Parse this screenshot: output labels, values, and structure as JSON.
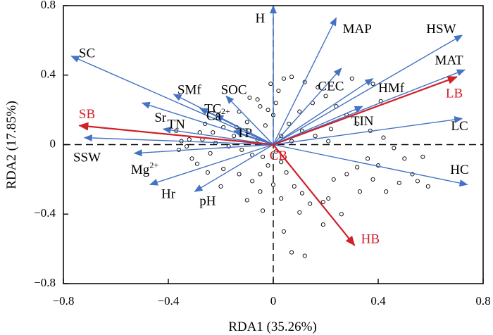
{
  "chart_data": {
    "type": "scatter",
    "xlabel": "RDA1  (35.26%)",
    "ylabel": "RDA2  (17.85%)",
    "xlim": [
      -0.8,
      0.8
    ],
    "ylim": [
      -0.8,
      0.8
    ],
    "x_ticks": [
      -0.8,
      -0.4,
      0,
      0.4,
      0.8
    ],
    "x_tick_labels": [
      "−0.8",
      "−0.4",
      "0",
      "0.4",
      "0.8"
    ],
    "y_ticks": [
      -0.8,
      -0.4,
      0,
      0.4,
      0.8
    ],
    "y_tick_labels": [
      "−0.8",
      "−0.4",
      "0",
      "0.4",
      "0.8"
    ],
    "colors": {
      "environment_arrow": "#4472c4",
      "species_arrow": "#d0202a",
      "axis": "#000000"
    },
    "environment_vectors": [
      {
        "name": "H",
        "x": 0.0,
        "y": 0.8,
        "label_x": -0.05,
        "label_y": 0.72
      },
      {
        "name": "MAP",
        "x": 0.24,
        "y": 0.73,
        "label_x": 0.32,
        "label_y": 0.66
      },
      {
        "name": "HSW",
        "x": 0.72,
        "y": 0.63,
        "label_x": 0.64,
        "label_y": 0.66
      },
      {
        "name": "MAT",
        "x": 0.73,
        "y": 0.43,
        "label_x": 0.67,
        "label_y": 0.48
      },
      {
        "name": "CEC",
        "x": 0.26,
        "y": 0.44,
        "label_x": 0.22,
        "label_y": 0.33
      },
      {
        "name": "HMf",
        "x": 0.38,
        "y": 0.38,
        "label_x": 0.45,
        "label_y": 0.32
      },
      {
        "name": "TIN",
        "x": 0.34,
        "y": 0.22,
        "label_x": 0.34,
        "label_y": 0.13
      },
      {
        "name": "LC",
        "x": 0.72,
        "y": 0.15,
        "label_x": 0.71,
        "label_y": 0.1
      },
      {
        "name": "HC",
        "x": 0.74,
        "y": -0.23,
        "label_x": 0.71,
        "label_y": -0.15
      },
      {
        "name": "SC",
        "x": -0.77,
        "y": 0.51,
        "label_x": -0.71,
        "label_y": 0.52
      },
      {
        "name": "SMf",
        "x": -0.38,
        "y": 0.29,
        "label_x": -0.32,
        "label_y": 0.31
      },
      {
        "name": "SOC",
        "x": -0.18,
        "y": 0.28,
        "label_x": -0.15,
        "label_y": 0.31
      },
      {
        "name": "TC",
        "x": -0.28,
        "y": 0.21,
        "label_x": -0.23,
        "label_y": 0.2
      },
      {
        "name": "Sr",
        "x": -0.5,
        "y": 0.24,
        "label_x": -0.43,
        "label_y": 0.15
      },
      {
        "name": "TN",
        "x": -0.42,
        "y": 0.09,
        "label_x": -0.37,
        "label_y": 0.11
      },
      {
        "name": "TP",
        "x": -0.15,
        "y": 0.08,
        "label_x": -0.11,
        "label_y": 0.06
      },
      {
        "name": "SSW",
        "x": -0.72,
        "y": 0.04,
        "label_x": -0.71,
        "label_y": -0.08
      },
      {
        "name": "Hr",
        "x": -0.47,
        "y": -0.23,
        "label_x": -0.4,
        "label_y": -0.29
      },
      {
        "name": "pH",
        "x": -0.3,
        "y": -0.27,
        "label_x": -0.25,
        "label_y": -0.33
      }
    ],
    "environment_superscript_vectors": [
      {
        "name": "Ca",
        "sup": "2+",
        "x": -0.22,
        "y": 0.17,
        "label_x": -0.21,
        "label_y": 0.16
      },
      {
        "name": "Mg",
        "sup": "2+",
        "x": -0.53,
        "y": -0.05,
        "label_x": -0.49,
        "label_y": -0.15
      }
    ],
    "species_vectors": [
      {
        "name": "LB",
        "x": 0.7,
        "y": 0.39,
        "label_x": 0.69,
        "label_y": 0.29
      },
      {
        "name": "SB",
        "x": -0.74,
        "y": 0.11,
        "label_x": -0.71,
        "label_y": 0.17
      },
      {
        "name": "HB",
        "x": 0.31,
        "y": -0.58,
        "label_x": 0.37,
        "label_y": -0.55
      },
      {
        "name": "CB",
        "x": 0.0,
        "y": 0.0,
        "label_x": 0.02,
        "label_y": -0.07
      }
    ],
    "sites": [
      [
        0.04,
        0.38
      ],
      [
        0.07,
        0.39
      ],
      [
        -0.01,
        0.35
      ],
      [
        0.02,
        0.31
      ],
      [
        -0.06,
        0.26
      ],
      [
        -0.09,
        0.27
      ],
      [
        -0.05,
        0.22
      ],
      [
        -0.02,
        0.2
      ],
      [
        0.0,
        0.17
      ],
      [
        -0.03,
        0.11
      ],
      [
        -0.1,
        0.13
      ],
      [
        -0.14,
        0.1
      ],
      [
        -0.19,
        0.1
      ],
      [
        -0.23,
        0.07
      ],
      [
        -0.28,
        0.07
      ],
      [
        -0.32,
        0.03
      ],
      [
        -0.35,
        0.02
      ],
      [
        -0.33,
        -0.01
      ],
      [
        -0.27,
        0.03
      ],
      [
        -0.22,
        0.01
      ],
      [
        -0.17,
        -0.01
      ],
      [
        -0.12,
        -0.03
      ],
      [
        -0.08,
        -0.06
      ],
      [
        -0.04,
        -0.07
      ],
      [
        -0.24,
        -0.05
      ],
      [
        -0.29,
        -0.11
      ],
      [
        -0.25,
        -0.16
      ],
      [
        -0.19,
        -0.14
      ],
      [
        -0.13,
        -0.17
      ],
      [
        -0.08,
        -0.21
      ],
      [
        -0.05,
        -0.17
      ],
      [
        -0.02,
        -0.12
      ],
      [
        0.01,
        -0.04
      ],
      [
        0.03,
        -0.1
      ],
      [
        0.05,
        -0.16
      ],
      [
        0.08,
        -0.24
      ],
      [
        0.11,
        -0.28
      ],
      [
        0.14,
        -0.34
      ],
      [
        0.1,
        -0.39
      ],
      [
        0.19,
        -0.46
      ],
      [
        0.19,
        -0.33
      ],
      [
        0.23,
        -0.2
      ],
      [
        0.28,
        -0.17
      ],
      [
        0.32,
        -0.13
      ],
      [
        0.36,
        -0.08
      ],
      [
        0.4,
        -0.12
      ],
      [
        0.38,
        -0.2
      ],
      [
        0.43,
        -0.27
      ],
      [
        0.48,
        -0.22
      ],
      [
        0.53,
        -0.17
      ],
      [
        0.5,
        -0.08
      ],
      [
        0.46,
        -0.02
      ],
      [
        0.42,
        0.04
      ],
      [
        0.37,
        0.08
      ],
      [
        0.32,
        0.12
      ],
      [
        0.28,
        0.17
      ],
      [
        0.24,
        0.22
      ],
      [
        0.2,
        0.28
      ],
      [
        0.17,
        0.33
      ],
      [
        0.12,
        0.36
      ],
      [
        0.15,
        0.24
      ],
      [
        0.1,
        0.19
      ],
      [
        0.06,
        0.12
      ],
      [
        0.11,
        0.08
      ],
      [
        0.16,
        0.05
      ],
      [
        0.21,
        0.02
      ],
      [
        0.07,
        0.02
      ],
      [
        0.03,
        0.05
      ],
      [
        -0.06,
        0.03
      ],
      [
        -0.15,
        0.05
      ],
      [
        -0.37,
        0.08
      ],
      [
        -0.31,
        -0.08
      ],
      [
        -0.2,
        -0.24
      ],
      [
        -0.1,
        -0.32
      ],
      [
        -0.04,
        -0.38
      ],
      [
        0.04,
        -0.5
      ],
      [
        0.07,
        -0.62
      ],
      [
        0.12,
        -0.64
      ],
      [
        -0.05,
        -0.27
      ],
      [
        0.0,
        -0.23
      ],
      [
        0.03,
        -0.31
      ],
      [
        0.26,
        -0.4
      ],
      [
        0.21,
        -0.31
      ],
      [
        0.33,
        -0.27
      ],
      [
        0.57,
        -0.07
      ],
      [
        0.55,
        -0.21
      ],
      [
        0.59,
        -0.24
      ],
      [
        0.38,
        0.35
      ],
      [
        0.41,
        0.25
      ],
      [
        0.3,
        0.38
      ],
      [
        -0.13,
        0.19
      ],
      [
        -0.21,
        0.17
      ],
      [
        0.01,
        0.24
      ],
      [
        -0.26,
        0.12
      ],
      [
        -0.36,
        -0.03
      ],
      [
        0.22,
        0.09
      ]
    ]
  }
}
